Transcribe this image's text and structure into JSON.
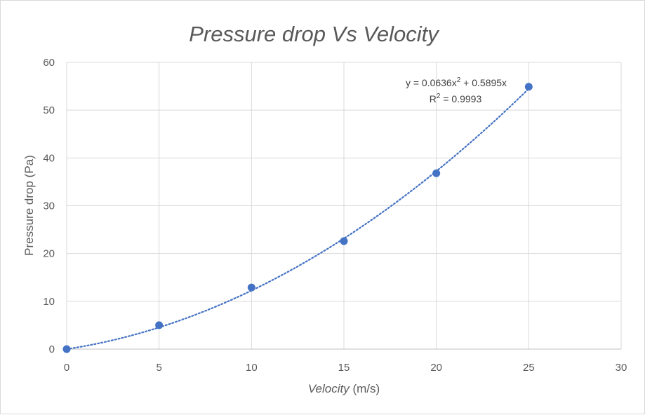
{
  "chart_data": {
    "type": "scatter",
    "title": "Pressure drop Vs Velocity",
    "xlabel": {
      "italic_part": "Velocity",
      "unit_part": " (m/s)"
    },
    "ylabel": "Pressure drop (Pa)",
    "xlim": [
      0,
      30
    ],
    "ylim": [
      0,
      60
    ],
    "xticks": [
      0,
      5,
      10,
      15,
      20,
      25,
      30
    ],
    "yticks": [
      0,
      10,
      20,
      30,
      40,
      50,
      60
    ],
    "grid": true,
    "legend": "none",
    "series": [
      {
        "x": [
          0,
          5,
          10,
          15,
          20,
          25
        ],
        "y": [
          0,
          5.0,
          12.9,
          22.6,
          36.8,
          54.9
        ],
        "marker_color": "#4472c4"
      }
    ],
    "trendline": {
      "type": "polynomial",
      "a": 0.0636,
      "b": 0.5895,
      "style": "dotted",
      "color": "#4472c4",
      "equation_text": {
        "p1": "y = 0.0636x",
        "sup": "2",
        "p2": " + 0.5895x"
      },
      "r2_text": {
        "p1": "R",
        "sup": "2",
        "p2": " = 0.9993"
      }
    }
  }
}
